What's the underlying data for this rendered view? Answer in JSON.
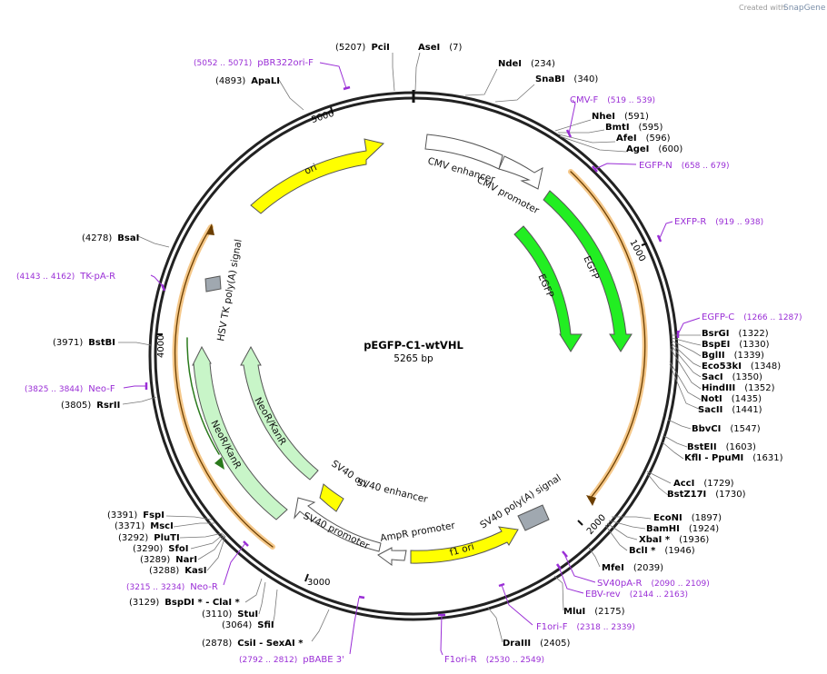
{
  "credit": {
    "text": "Created with",
    "logo": "SnapGene"
  },
  "plasmid": {
    "name": "pEGFP-C1-wtVHL",
    "size_label": "5265 bp",
    "length": 5265
  },
  "ticks": [
    "1000",
    "2000",
    "3000",
    "4000",
    "5000"
  ],
  "features": [
    {
      "name": "CMV enhancer",
      "start": 1,
      "end": 380,
      "color": "#ffffff"
    },
    {
      "name": "CMV promoter",
      "start": 381,
      "end": 584,
      "color": "#ffffff"
    },
    {
      "name": "EGFP",
      "start": 613,
      "end": 1329,
      "color": "#22ee22"
    },
    {
      "name": "EGFP",
      "start": 650,
      "end": 1329,
      "color": "#22ee22"
    },
    {
      "name": "SV40 poly(A) signal",
      "start": 2150,
      "end": 2271,
      "color": "#a0a8b0"
    },
    {
      "name": "f1 ori",
      "start": 2318,
      "end": 2773,
      "color": "#ffff00"
    },
    {
      "name": "AmpR promoter",
      "start": 2800,
      "end": 2904,
      "color": "#ffffff"
    },
    {
      "name": "SV40 promoter",
      "start": 2906,
      "end": 3263,
      "color": "#ffffff"
    },
    {
      "name": "SV40 ori",
      "start": 3114,
      "end": 3250,
      "color": "#ffff00"
    },
    {
      "name": "SV40 enhancer",
      "start": 3040,
      "end": 3111,
      "color": "#ffffff"
    },
    {
      "name": "NeoR/KanR",
      "start": 3310,
      "end": 4104,
      "color": "#c8f5c8"
    },
    {
      "name": "NeoR/KanR",
      "start": 3360,
      "end": 4104,
      "color": "#c8f5c8"
    },
    {
      "name": "HSV TK poly(A) signal",
      "start": 4330,
      "end": 4360,
      "color": "#a0a8b0"
    },
    {
      "name": "ori",
      "start": 4675,
      "end": 5263,
      "color": "#ffff00"
    }
  ],
  "enzymes": [
    {
      "name": "PciI",
      "pos": "(5207)"
    },
    {
      "name": "AseI",
      "pos": "(7)"
    },
    {
      "name": "NdeI",
      "pos": "(234)"
    },
    {
      "name": "SnaBI",
      "pos": "(340)"
    },
    {
      "name": "NheI",
      "pos": "(591)"
    },
    {
      "name": "BmtI",
      "pos": "(595)"
    },
    {
      "name": "AfeI",
      "pos": "(596)"
    },
    {
      "name": "AgeI",
      "pos": "(600)"
    },
    {
      "name": "BsrGI",
      "pos": "(1322)"
    },
    {
      "name": "BspEI",
      "pos": "(1330)"
    },
    {
      "name": "BglII",
      "pos": "(1339)"
    },
    {
      "name": "Eco53kI",
      "pos": "(1348)"
    },
    {
      "name": "SacI",
      "pos": "(1350)"
    },
    {
      "name": "HindIII",
      "pos": "(1352)"
    },
    {
      "name": "NotI",
      "pos": "(1435)"
    },
    {
      "name": "SacII",
      "pos": "(1441)"
    },
    {
      "name": "BbvCI",
      "pos": "(1547)"
    },
    {
      "name": "BstEII",
      "pos": "(1603)"
    },
    {
      "name": "KflI - PpuMI",
      "pos": "(1631)"
    },
    {
      "name": "AccI",
      "pos": "(1729)"
    },
    {
      "name": "BstZ17I",
      "pos": "(1730)"
    },
    {
      "name": "EcoNI",
      "pos": "(1897)"
    },
    {
      "name": "BamHI",
      "pos": "(1924)"
    },
    {
      "name": "XbaI *",
      "pos": "(1936)"
    },
    {
      "name": "BclI *",
      "pos": "(1946)"
    },
    {
      "name": "MfeI",
      "pos": "(2039)"
    },
    {
      "name": "MluI",
      "pos": "(2175)"
    },
    {
      "name": "DraIII",
      "pos": "(2405)"
    },
    {
      "name": "CsiI - SexAI *",
      "pos": "(2878)"
    },
    {
      "name": "SfiI",
      "pos": "(3064)"
    },
    {
      "name": "StuI",
      "pos": "(3110)"
    },
    {
      "name": "BspDI * - ClaI *",
      "pos": "(3129)"
    },
    {
      "name": "KasI",
      "pos": "(3288)"
    },
    {
      "name": "NarI",
      "pos": "(3289)"
    },
    {
      "name": "SfoI",
      "pos": "(3290)"
    },
    {
      "name": "PluTI",
      "pos": "(3292)"
    },
    {
      "name": "MscI",
      "pos": "(3371)"
    },
    {
      "name": "FspI",
      "pos": "(3391)"
    },
    {
      "name": "RsrII",
      "pos": "(3805)"
    },
    {
      "name": "BstBI",
      "pos": "(3971)"
    },
    {
      "name": "BsaI",
      "pos": "(4278)"
    },
    {
      "name": "ApaLI",
      "pos": "(4893)"
    }
  ],
  "primers": [
    {
      "name": "pBR322ori-F",
      "range": "(5052 .. 5071)"
    },
    {
      "name": "CMV-F",
      "range": "(519 .. 539)"
    },
    {
      "name": "EGFP-N",
      "range": "(658 .. 679)"
    },
    {
      "name": "EXFP-R",
      "range": "(919 .. 938)"
    },
    {
      "name": "EGFP-C",
      "range": "(1266 .. 1287)"
    },
    {
      "name": "SV40pA-R",
      "range": "(2090 .. 2109)"
    },
    {
      "name": "EBV-rev",
      "range": "(2144 .. 2163)"
    },
    {
      "name": "F1ori-F",
      "range": "(2318 .. 2339)"
    },
    {
      "name": "F1ori-R",
      "range": "(2530 .. 2549)"
    },
    {
      "name": "pBABE 3'",
      "range": "(2792 .. 2812)"
    },
    {
      "name": "Neo-R",
      "range": "(3215 .. 3234)"
    },
    {
      "name": "Neo-F",
      "range": "(3825 .. 3844)"
    },
    {
      "name": "TK-pA-R",
      "range": "(4143 .. 4162)"
    }
  ]
}
